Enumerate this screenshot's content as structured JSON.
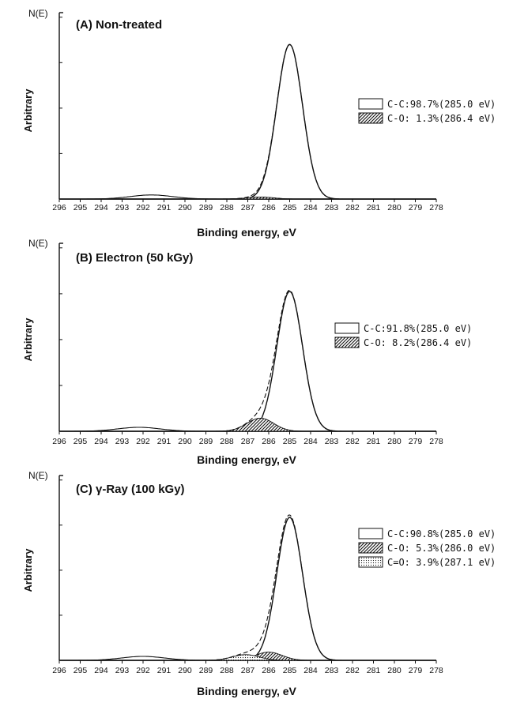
{
  "colors": {
    "ink": "#111111",
    "background": "#ffffff"
  },
  "chart_data": [
    {
      "type": "area",
      "title": "(A) Non-treated",
      "ylabel_small": "N(E)",
      "ylabel": "Arbitrary",
      "xlabel": "Binding energy, eV",
      "xlim": [
        296,
        278
      ],
      "x_reversed": true,
      "x_ticks": [
        296,
        295,
        294,
        293,
        292,
        291,
        290,
        289,
        288,
        287,
        286,
        285,
        284,
        283,
        282,
        281,
        280,
        279,
        278
      ],
      "legend_position": "right",
      "series": [
        {
          "name": "C-C:98.7%(285.0 eV)",
          "pattern": "open",
          "center": 285.0,
          "height": 0.978,
          "fwhm": 1.45
        },
        {
          "name": "C-O: 1.3%(286.4 eV)",
          "pattern": "hatched",
          "center": 286.4,
          "height": 0.013,
          "fwhm": 1.5
        }
      ],
      "shakeup": {
        "center": 291.6,
        "height": 0.026,
        "fwhm": 2.4
      }
    },
    {
      "type": "area",
      "title": "(B) Electron (50 kGy)",
      "ylabel_small": "N(E)",
      "ylabel": "Arbitrary",
      "xlabel": "Binding energy, eV",
      "xlim": [
        296,
        278
      ],
      "x_reversed": true,
      "x_ticks": [
        296,
        295,
        294,
        293,
        292,
        291,
        290,
        289,
        288,
        287,
        286,
        285,
        284,
        283,
        282,
        281,
        280,
        279,
        278
      ],
      "legend_position": "right",
      "series": [
        {
          "name": "C-C:91.8%(285.0 eV)",
          "pattern": "open",
          "center": 285.0,
          "height": 0.885,
          "fwhm": 1.45
        },
        {
          "name": "C-O: 8.2%(286.4 eV)",
          "pattern": "hatched",
          "center": 286.4,
          "height": 0.083,
          "fwhm": 1.5
        }
      ],
      "shakeup": {
        "center": 292.2,
        "height": 0.025,
        "fwhm": 2.4
      }
    },
    {
      "type": "area",
      "title": "(C) γ-Ray (100 kGy)",
      "ylabel_small": "N(E)",
      "ylabel": "Arbitrary",
      "xlabel": "Binding energy, eV",
      "xlim": [
        296,
        278
      ],
      "x_reversed": true,
      "x_ticks": [
        296,
        295,
        294,
        293,
        292,
        291,
        290,
        289,
        288,
        287,
        286,
        285,
        284,
        283,
        282,
        281,
        280,
        279,
        278
      ],
      "legend_position": "right",
      "series": [
        {
          "name": "C-C:90.8%(285.0 eV)",
          "pattern": "open",
          "center": 285.0,
          "height": 0.905,
          "fwhm": 1.45
        },
        {
          "name": "C-O: 5.3%(286.0 eV)",
          "pattern": "hatched",
          "center": 286.0,
          "height": 0.052,
          "fwhm": 1.5
        },
        {
          "name": "C=O: 3.9%(287.1 eV)",
          "pattern": "dotted",
          "center": 287.1,
          "height": 0.036,
          "fwhm": 1.5
        }
      ],
      "shakeup": {
        "center": 292.0,
        "height": 0.025,
        "fwhm": 2.4
      }
    }
  ]
}
